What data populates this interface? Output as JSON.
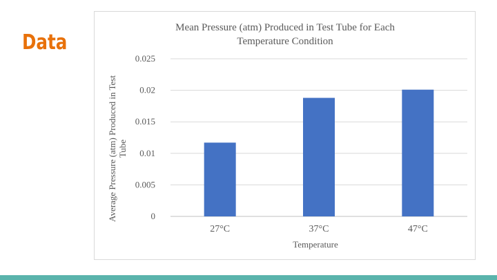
{
  "slide": {
    "title": "Data",
    "accent_color": "#e8710a",
    "footer_color": "#5ab4ac"
  },
  "chart_data": {
    "type": "bar",
    "title_line1": "Mean Pressure (atm) Produced in Test Tube for Each",
    "title_line2": "Temperature Condition",
    "xlabel": "Temperature",
    "ylabel_line1": "Average Pressure (atm) Produced in Test",
    "ylabel_line2": "Tube",
    "categories": [
      "27°C",
      "37°C",
      "47°C"
    ],
    "values": [
      0.0117,
      0.0188,
      0.0201
    ],
    "ylim": [
      0,
      0.025
    ],
    "yticks": [
      "0",
      "0.005",
      "0.01",
      "0.015",
      "0.02",
      "0.025"
    ],
    "ytick_values": [
      0,
      0.005,
      0.01,
      0.015,
      0.02,
      0.025
    ],
    "bar_color": "#4472c4",
    "grid": true,
    "legend": "none"
  }
}
